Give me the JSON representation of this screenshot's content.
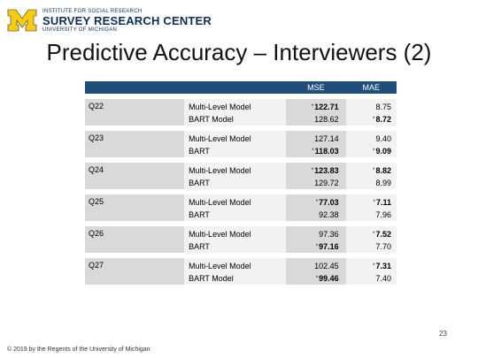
{
  "header": {
    "institute": "INSTITUTE FOR SOCIAL RESEARCH",
    "center": "SURVEY RESEARCH CENTER",
    "university": "UNIVERSITY OF MICHIGAN"
  },
  "title": "Predictive Accuracy – Interviewers (2)",
  "columns": {
    "mse": "MSE",
    "mae": "MAE"
  },
  "rows": [
    {
      "q": "Q22",
      "m1": "Multi-Level Model",
      "m2": "BART Model",
      "mse1": "122.71",
      "mse2": "128.62",
      "mae1": "8.75",
      "mae2": "8.72"
    },
    {
      "q": "Q23",
      "m1": "Multi-Level Model",
      "m2": "BART",
      "mse1": "127.14",
      "mse2": "118.03",
      "mae1": "9.40",
      "mae2": "9.09"
    },
    {
      "q": "Q24",
      "m1": "Multi-Level Model",
      "m2": "BART",
      "mse1": "123.83",
      "mse2": "129.72",
      "mae1": "8.82",
      "mae2": "8.99"
    },
    {
      "q": "Q25",
      "m1": "Multi-Level Model",
      "m2": "BART",
      "mse1": "77.03",
      "mse2": "92.38",
      "mae1": "7.11",
      "mae2": "7.96"
    },
    {
      "q": "Q26",
      "m1": "Multi-Level Model",
      "m2": "BART",
      "mse1": "97.36",
      "mse2": "97.16",
      "mae1": "7.52",
      "mae2": "7.70"
    },
    {
      "q": "Q27",
      "m1": "Multi-Level Model",
      "m2": "BART Model",
      "mse1": "102.45",
      "mse2": "99.46",
      "mae1": "7.31",
      "mae2": "7.40"
    }
  ],
  "star_symbol": "*",
  "page_number": "23",
  "copyright": "© 2019 by the Regents of the University of Michigan"
}
